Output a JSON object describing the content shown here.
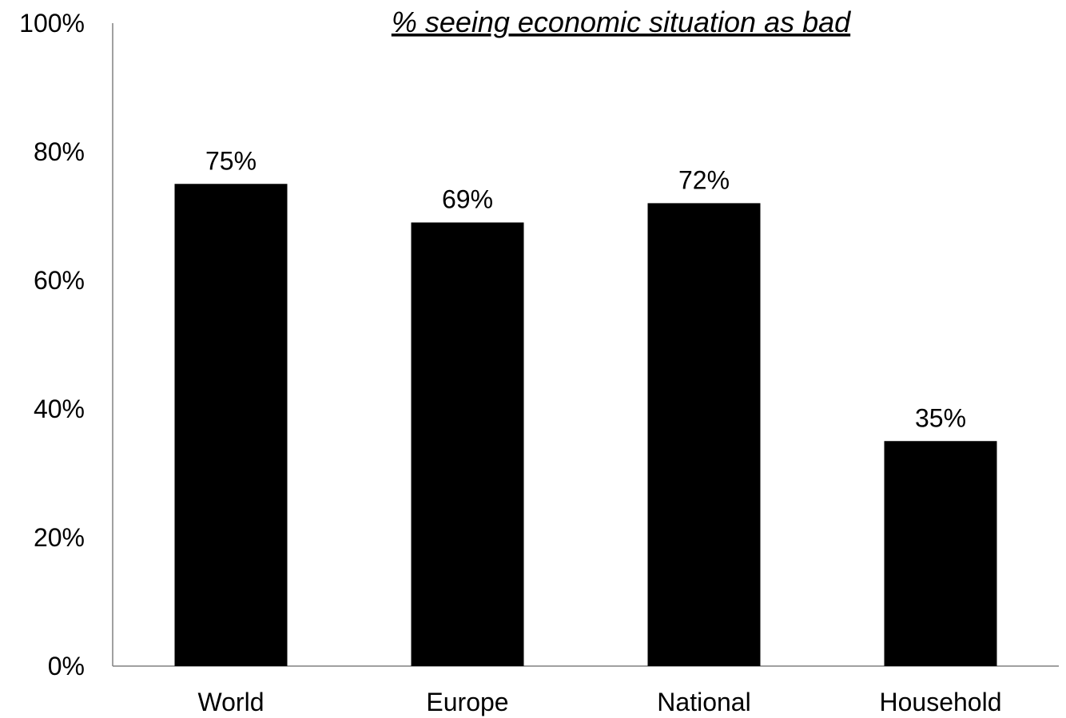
{
  "chart_data": {
    "type": "bar",
    "title": "% seeing economic situation as bad",
    "categories": [
      "World",
      "Europe",
      "National",
      "Household"
    ],
    "values": [
      75,
      69,
      72,
      35
    ],
    "data_labels": [
      "75%",
      "69%",
      "72%",
      "35%"
    ],
    "xlabel": "",
    "ylabel": "",
    "ylim": [
      0,
      100
    ],
    "y_ticks": [
      0,
      20,
      40,
      60,
      80,
      100
    ],
    "y_tick_labels": [
      "0%",
      "20%",
      "40%",
      "60%",
      "80%",
      "100%"
    ],
    "grid": false,
    "legend": "none",
    "bar_color": "#000000",
    "axis_color": "#808080"
  }
}
